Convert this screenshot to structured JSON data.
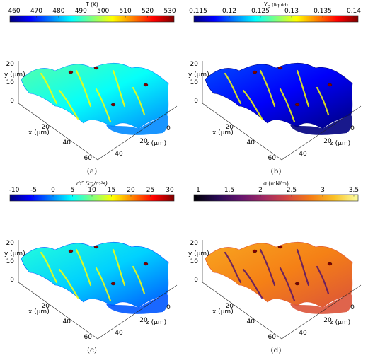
{
  "panels": [
    {
      "id": "a",
      "caption": "(a)",
      "colorbar": {
        "title": "T (K)",
        "title_italic": false,
        "colormap": "jet",
        "ticks": [
          "460",
          "470",
          "480",
          "490",
          "500",
          "510",
          "520",
          "530"
        ]
      },
      "surface_colormap": "jet",
      "surface_level": 0.38
    },
    {
      "id": "b",
      "caption": "(b)",
      "colorbar": {
        "title": "Y",
        "title_sub": "O",
        "title_suffix": " (liquid)",
        "title_italic": false,
        "colormap": "jet",
        "ticks": [
          "0.115",
          "0.12",
          "0.125",
          "0.13",
          "0.135",
          "0.14"
        ]
      },
      "surface_colormap": "jet",
      "surface_level": 0.12
    },
    {
      "id": "c",
      "caption": "(c)",
      "colorbar": {
        "title": "ṁ″   (kg/m²s)",
        "title_italic": true,
        "colormap": "jet",
        "ticks": [
          "-10",
          "-5",
          "0",
          "5",
          "10",
          "15",
          "20",
          "25",
          "30"
        ]
      },
      "surface_colormap": "jet",
      "surface_level": 0.33
    },
    {
      "id": "d",
      "caption": "(d)",
      "colorbar": {
        "title": "σ (mN/m)",
        "title_italic": false,
        "colormap": "inferno",
        "ticks": [
          "1",
          "1.5",
          "2",
          "2.5",
          "3",
          "3.5"
        ]
      },
      "surface_colormap": "inferno",
      "surface_level": 0.72
    }
  ],
  "axes": {
    "y_label": "y (μm)",
    "x_label": "x (μm)",
    "z_label": "z (μm)",
    "y_ticks": [
      "0",
      "10",
      "20"
    ],
    "x_ticks": [
      "20",
      "40",
      "60"
    ],
    "z_ticks": [
      "0",
      "20",
      "40"
    ]
  }
}
